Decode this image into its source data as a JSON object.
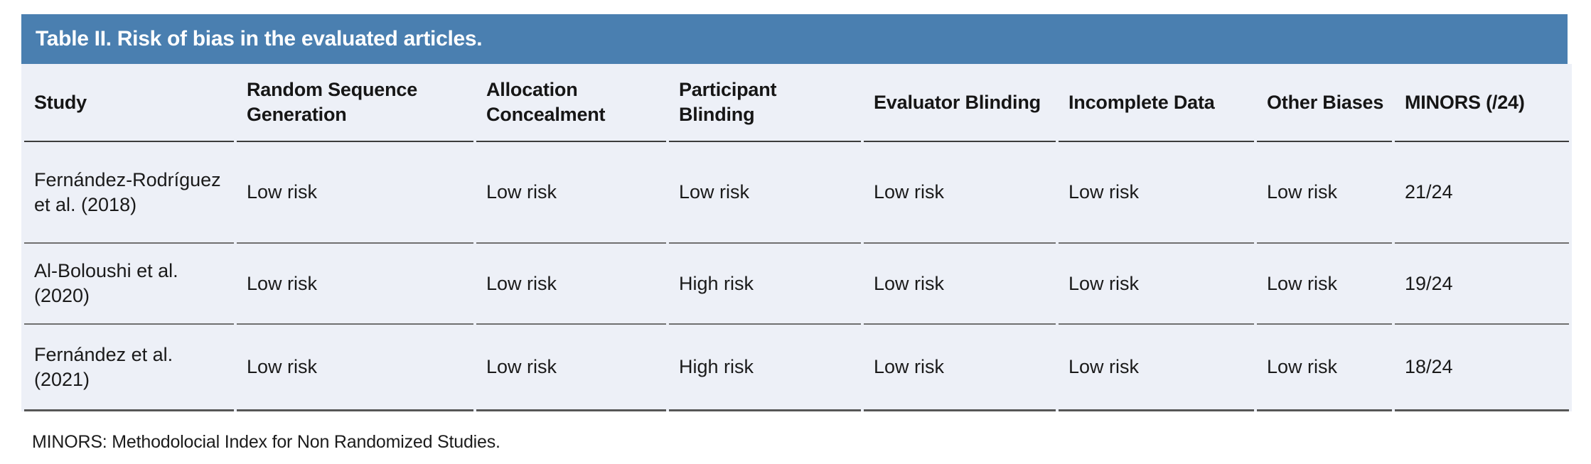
{
  "table": {
    "title": "Table II. Risk of bias in the evaluated articles.",
    "title_bar_color": "#4a7fb0",
    "title_text_color": "#ffffff",
    "body_background": "#edf0f7",
    "columns": [
      "Study",
      "Random Sequence Generation",
      "Allocation Concealment",
      "Participant Blinding",
      "Evaluator Blinding",
      "Incomplete Data",
      "Other Biases",
      "MINORS (/24)"
    ],
    "rows": [
      {
        "cells": [
          "Fernández-Rodríguez et al. (2018)",
          "Low risk",
          "Low risk",
          "Low risk",
          "Low risk",
          "Low risk",
          "Low risk",
          "21/24"
        ]
      },
      {
        "cells": [
          "Al-Boloushi et al. (2020)",
          "Low risk",
          "Low risk",
          "High risk",
          "Low risk",
          "Low risk",
          "Low risk",
          "19/24"
        ]
      },
      {
        "cells": [
          "Fernández et al. (2021)",
          "Low risk",
          "Low risk",
          "High risk",
          "Low risk",
          "Low risk",
          "Low risk",
          "18/24"
        ]
      }
    ],
    "footnote": "MINORS: Methodolocial Index for Non Randomized Studies."
  }
}
